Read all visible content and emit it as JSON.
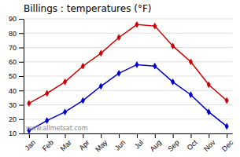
{
  "chart_data": {
    "type": "line",
    "title": "Billings : temperatures (°F)",
    "categories": [
      "Jan",
      "Feb",
      "Mar",
      "Apr",
      "May",
      "Jun",
      "Jul",
      "Aug",
      "Sep",
      "Oct",
      "Nov",
      "Dec"
    ],
    "series": [
      {
        "color": "#cc0000",
        "marker": "diamond",
        "values": [
          31,
          38,
          46,
          57,
          66,
          77,
          86,
          85,
          71,
          60,
          44,
          33
        ]
      },
      {
        "color": "#0000cc",
        "marker": "diamond",
        "values": [
          12,
          19,
          25,
          33,
          43,
          52,
          58,
          57,
          46,
          37,
          25,
          15
        ]
      }
    ],
    "ylim": [
      10,
      90
    ],
    "yticks": [
      10,
      20,
      30,
      40,
      50,
      60,
      70,
      80,
      90
    ],
    "grid": true,
    "annotation": "www.allmetsat.com"
  }
}
